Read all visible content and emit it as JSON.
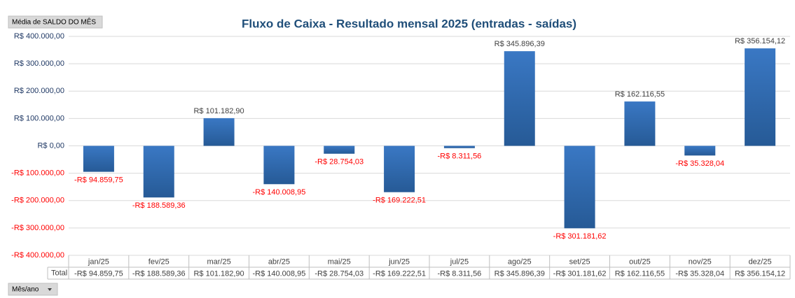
{
  "chart_data": {
    "type": "bar",
    "title": "Fluxo de Caixa - Resultado mensal 2025 (entradas - saídas)",
    "value_field_button": "Média de SALDO DO MÊS",
    "axis_field_button": "Mês/ano",
    "table_row_label": "Total",
    "categories": [
      "jan/25",
      "fev/25",
      "mar/25",
      "abr/25",
      "mai/25",
      "jun/25",
      "jul/25",
      "ago/25",
      "set/25",
      "out/25",
      "nov/25",
      "dez/25"
    ],
    "values": [
      -94859.75,
      -188589.36,
      101182.9,
      -140008.95,
      -28754.03,
      -169222.51,
      -8311.56,
      345896.39,
      -301181.62,
      162116.55,
      -35328.04,
      356154.12
    ],
    "value_labels": [
      "-R$ 94.859,75",
      "-R$ 188.589,36",
      "R$ 101.182,90",
      "-R$ 140.008,95",
      "-R$ 28.754,03",
      "-R$ 169.222,51",
      "-R$ 8.311,56",
      "R$ 345.896,39",
      "-R$ 301.181,62",
      "R$ 162.116,55",
      "-R$ 35.328,04",
      "R$ 356.154,12"
    ],
    "color": "#3a78c4",
    "color_dark": "#265a96",
    "negative_label_color": "#ff0000",
    "positive_label_color": "#1f3864",
    "ylim": [
      -400000,
      400000
    ],
    "yticks": [
      {
        "value": 400000,
        "label": "R$ 400.000,00"
      },
      {
        "value": 300000,
        "label": "R$ 300.000,00"
      },
      {
        "value": 200000,
        "label": "R$ 200.000,00"
      },
      {
        "value": 100000,
        "label": "R$ 100.000,00"
      },
      {
        "value": 0,
        "label": "R$ 0,00"
      },
      {
        "value": -100000,
        "label": "-R$ 100.000,00"
      },
      {
        "value": -200000,
        "label": "-R$ 200.000,00"
      },
      {
        "value": -300000,
        "label": "-R$ 300.000,00"
      },
      {
        "value": -400000,
        "label": "-R$ 400.000,00"
      }
    ],
    "grid": true
  }
}
